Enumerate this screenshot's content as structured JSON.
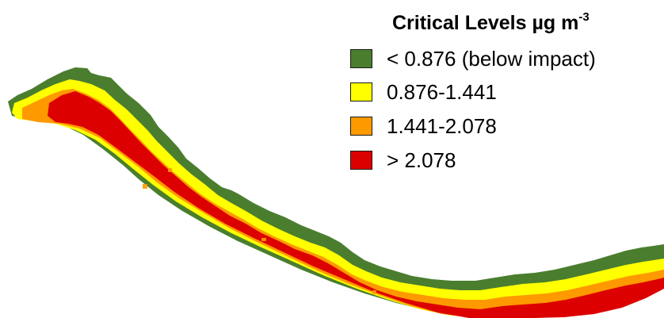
{
  "legend": {
    "title": "Critical Levels",
    "title_unit": "µg m",
    "title_exponent": "-3",
    "items": [
      {
        "label": "< 0.876 (below impact)",
        "color": "#4a7e2e"
      },
      {
        "label": "0.876-1.441",
        "color": "#ffff00"
      },
      {
        "label": "1.441-2.078",
        "color": "#ff9900"
      },
      {
        "label": "> 2.078",
        "color": "#dd0000"
      }
    ]
  }
}
